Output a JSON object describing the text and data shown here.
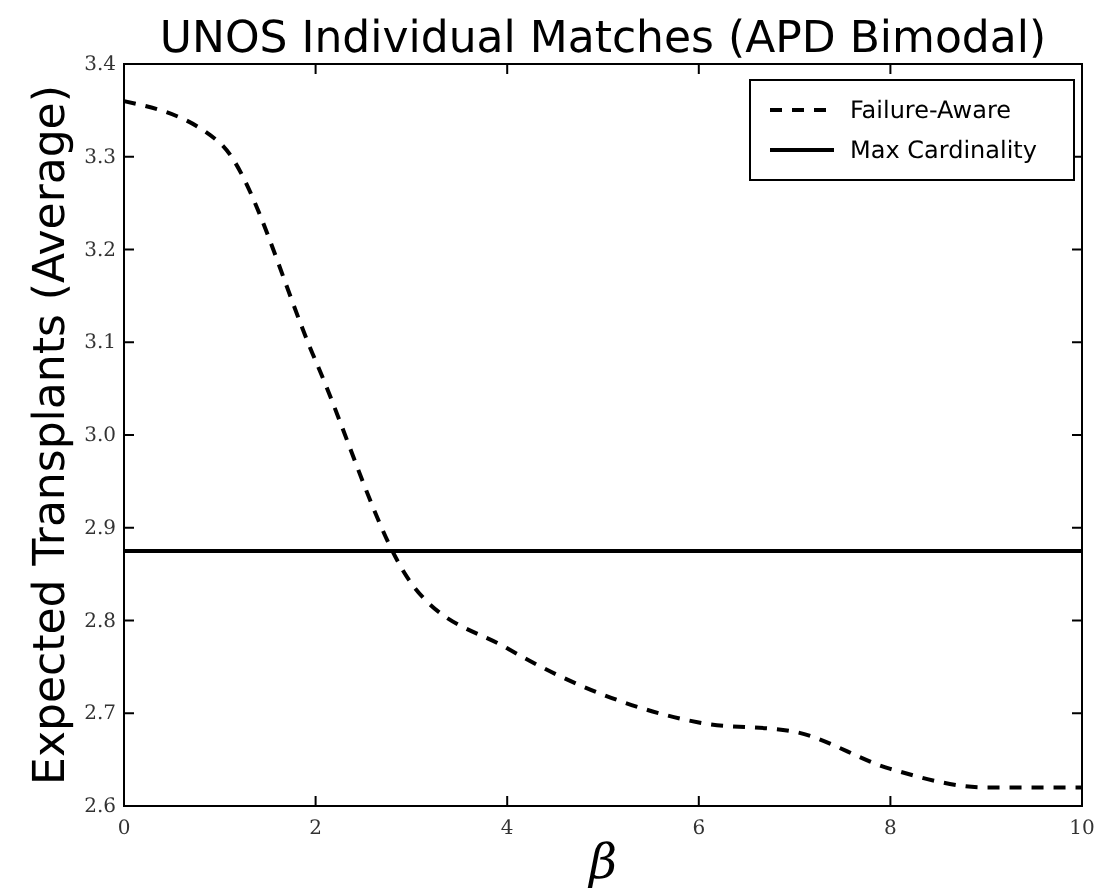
{
  "chart_data": {
    "type": "line",
    "title": "UNOS Individual Matches (APD Bimodal)",
    "xlabel": "β",
    "ylabel": "Expected Transplants (Average)",
    "xlim": [
      0,
      10
    ],
    "xticks": [
      0,
      2,
      4,
      6,
      8,
      10
    ],
    "ylim": [
      2.6,
      3.4
    ],
    "yticks": [
      2.6,
      2.7,
      2.8,
      2.9,
      {
        "value": 3,
        "label": "3.0"
      },
      3.1,
      3.2,
      3.3,
      3.4
    ],
    "grid": false,
    "legend": "top right",
    "marker": "none",
    "series": [
      {
        "name": "Failure-Aware",
        "color": "#000000",
        "line_style": "dashed",
        "x": [
          0,
          1,
          2,
          3,
          4,
          5,
          6,
          7,
          8,
          9,
          10
        ],
        "values": [
          3.36,
          3.315,
          3.08,
          2.84,
          2.77,
          2.72,
          2.69,
          2.68,
          2.64,
          2.62,
          2.62
        ]
      },
      {
        "name": "Max Cardinality",
        "color": "#000000",
        "line_style": "solid",
        "x": [
          0,
          10
        ],
        "values": [
          2.875,
          2.875
        ]
      }
    ]
  }
}
